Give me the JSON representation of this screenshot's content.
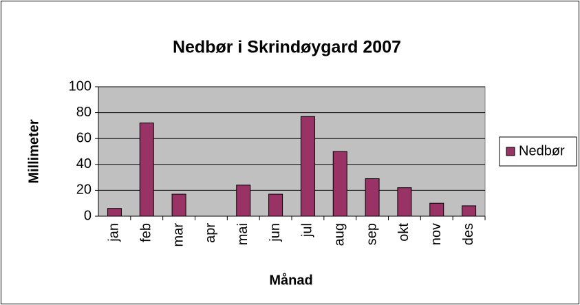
{
  "chart_data": {
    "type": "bar",
    "title": "Nedbør i Skrindøygard 2007",
    "x_label": "Månad",
    "y_label": "Millimeter",
    "categories": [
      "jan",
      "feb",
      "mar",
      "apr",
      "mai",
      "jun",
      "jul",
      "aug",
      "sep",
      "okt",
      "nov",
      "des"
    ],
    "series": [
      {
        "name": "Nedbør",
        "color": "#993366",
        "values": [
          6,
          72,
          17,
          0,
          24,
          17,
          77,
          50,
          29,
          22,
          10,
          8
        ]
      }
    ],
    "ylim": [
      0,
      100
    ],
    "yticks": [
      0,
      20,
      40,
      60,
      80,
      100
    ],
    "grid": true,
    "legend": "right"
  }
}
